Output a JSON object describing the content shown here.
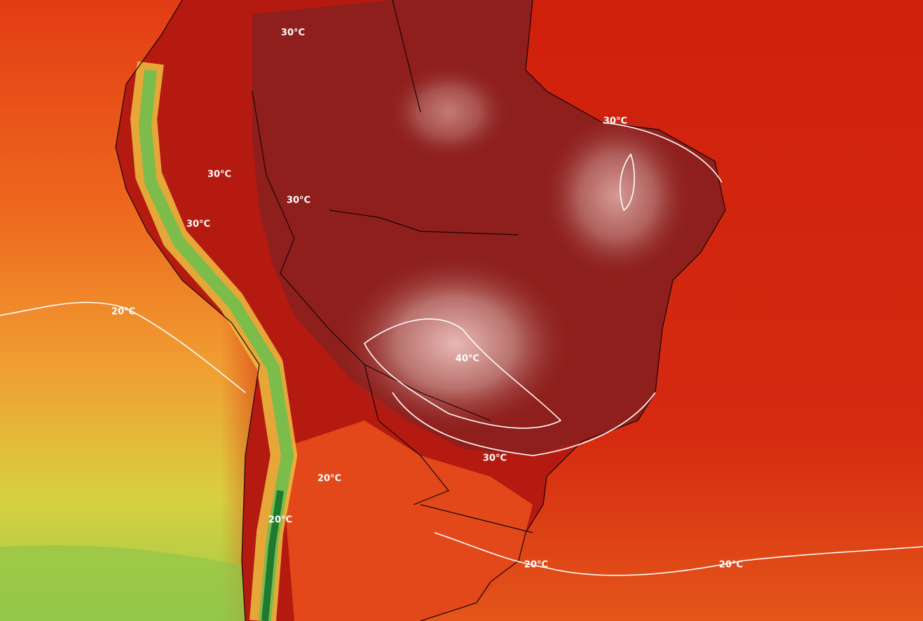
{
  "contour_labels": [
    "30°C",
    "30°C",
    "30°C",
    "30°C",
    "30°C",
    "30°C",
    "20°C",
    "20°C",
    "20°C",
    "20°C",
    "20°C",
    "40°C"
  ]
}
